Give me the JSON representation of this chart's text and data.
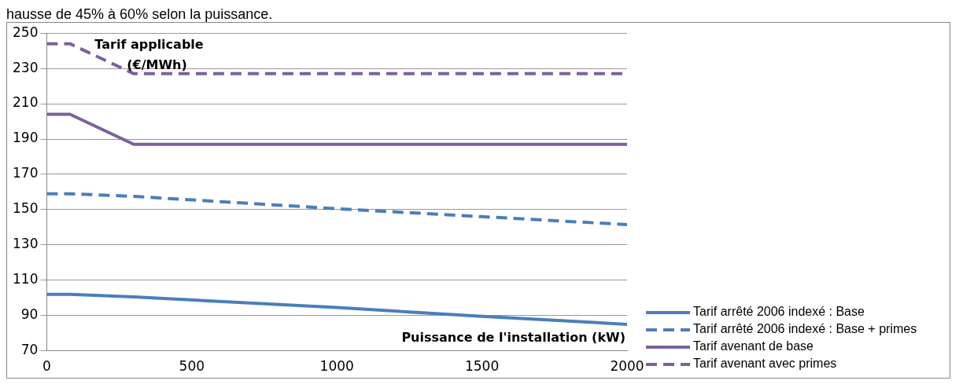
{
  "chart_data": {
    "type": "line",
    "title": "hausse de 45% à 60% selon la puissance.",
    "xlabel": "Puissance de l'installation (kW)",
    "ylabel": "Tarif applicable (€/MWh)",
    "x": [
      0,
      80,
      300,
      1000,
      1500,
      2000
    ],
    "series": [
      {
        "name": "Tarif arrêté 2006 indexé : Base",
        "color": "#4a7ebb",
        "line_style": "solid",
        "values": [
          102,
          102,
          100.5,
          94.5,
          89.5,
          85
        ]
      },
      {
        "name": "Tarif arrêté 2006 indexé : Base + primes",
        "color": "#4a7ebb",
        "line_style": "dashed",
        "values": [
          159,
          159,
          157.5,
          150.5,
          146,
          141.5
        ]
      },
      {
        "name": "Tarif avenant de base",
        "color": "#7d60a0",
        "line_style": "solid",
        "values": [
          204,
          204,
          187,
          187,
          187,
          187
        ]
      },
      {
        "name": "Tarif avenant avec primes",
        "color": "#7d60a0",
        "line_style": "dashed",
        "values": [
          244,
          244,
          227,
          227,
          227,
          227
        ]
      }
    ],
    "xlim": [
      0,
      2000
    ],
    "xticks": [
      0,
      500,
      1000,
      1500,
      2000
    ],
    "ylim": [
      70,
      250
    ],
    "yticks": [
      70,
      90,
      110,
      130,
      150,
      170,
      190,
      210,
      230,
      250
    ],
    "grid": "y",
    "legend": "bottom right",
    "marker": "none"
  }
}
